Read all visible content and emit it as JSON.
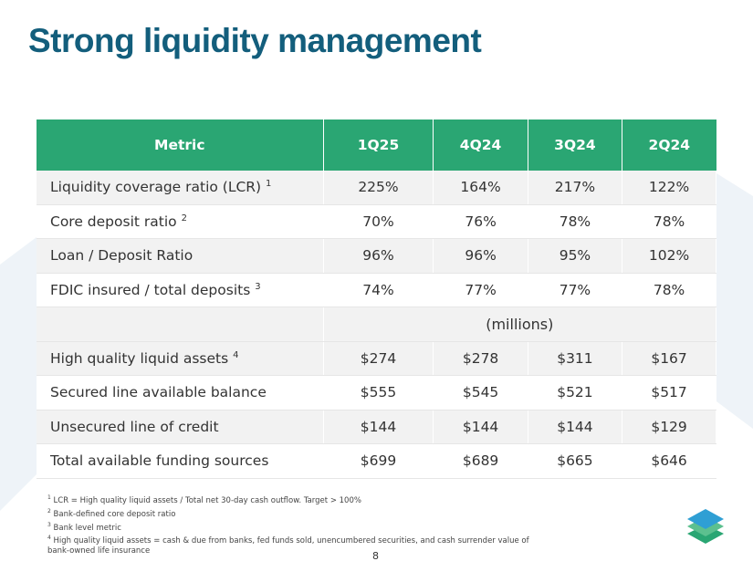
{
  "header": {
    "title": "Strong liquidity management"
  },
  "table": {
    "columns": [
      "Metric",
      "1Q25",
      "4Q24",
      "3Q24",
      "2Q24"
    ],
    "groups": [
      {
        "rows": [
          {
            "label": "Liquidity coverage ratio (LCR)",
            "note": "1",
            "cells": [
              "225%",
              "164%",
              "217%",
              "122%"
            ]
          },
          {
            "label": "Core deposit ratio",
            "note": "2",
            "cells": [
              "70%",
              "76%",
              "78%",
              "78%"
            ]
          },
          {
            "label": "Loan / Deposit Ratio",
            "cells": [
              "96%",
              "96%",
              "95%",
              "102%"
            ]
          },
          {
            "label": "FDIC insured / total deposits",
            "note": "3",
            "cells": [
              "74%",
              "77%",
              "77%",
              "78%"
            ]
          }
        ]
      },
      {
        "caption": "(millions)",
        "rows": [
          {
            "label": "High quality liquid assets",
            "note": "4",
            "cells": [
              "$274",
              "$278",
              "$311",
              "$167"
            ]
          },
          {
            "label": "Secured line available balance",
            "cells": [
              "$555",
              "$545",
              "$521",
              "$517"
            ]
          },
          {
            "label": "Unsecured line of credit",
            "cells": [
              "$144",
              "$144",
              "$144",
              "$129"
            ]
          },
          {
            "label": "Total available funding sources",
            "cells": [
              "$699",
              "$689",
              "$665",
              "$646"
            ]
          }
        ]
      }
    ]
  },
  "footnotes": [
    {
      "number": "1",
      "text": "LCR = High quality liquid assets / Total net 30-day cash outflow.  Target > 100%"
    },
    {
      "number": "2",
      "text": "Bank-defined core deposit ratio"
    },
    {
      "number": "3",
      "text": "Bank level metric"
    },
    {
      "number": "4",
      "text": "High quality liquid assets = cash & due from banks, fed funds sold, unencumbered securities, and cash surrender value of bank-owned life insurance"
    }
  ],
  "page_number": "8"
}
